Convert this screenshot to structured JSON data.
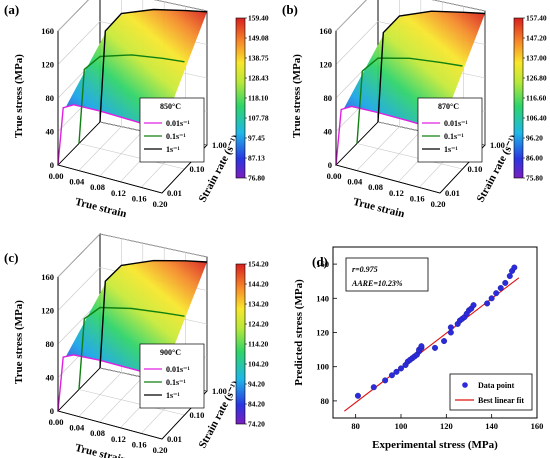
{
  "chart_data": [
    {
      "panel": "(a)",
      "type": "surface",
      "temperature": "850°C",
      "xlabel": "True strain",
      "ylabel": "True stress (MPa)",
      "zlabel": "Strain rate (s⁻¹)",
      "x_ticks": [
        "0.00",
        "0.04",
        "0.08",
        "0.12",
        "0.16",
        "0.20"
      ],
      "y_ticks": [
        "0",
        "40",
        "80",
        "120",
        "160"
      ],
      "z_ticks": [
        "0.01",
        "0.10",
        "1.00"
      ],
      "colorbar_ticks": [
        "159.40",
        "149.08",
        "138.75",
        "128.43",
        "118.10",
        "107.78",
        "97.45",
        "87.13",
        "76.80"
      ],
      "series": [
        {
          "name": "0.01s⁻¹",
          "color": "#e020e0",
          "values": [
            [
              0.0,
              0
            ],
            [
              0.01,
              70
            ],
            [
              0.03,
              77
            ],
            [
              0.08,
              78
            ],
            [
              0.14,
              77
            ],
            [
              0.2,
              76
            ]
          ]
        },
        {
          "name": "0.1s⁻¹",
          "color": "#108010",
          "values": [
            [
              0.0,
              0
            ],
            [
              0.01,
              90
            ],
            [
              0.04,
              110
            ],
            [
              0.1,
              121
            ],
            [
              0.16,
              126
            ],
            [
              0.2,
              128
            ]
          ]
        },
        {
          "name": "1s⁻¹",
          "color": "#000000",
          "values": [
            [
              0.0,
              0
            ],
            [
              0.01,
              110
            ],
            [
              0.04,
              135
            ],
            [
              0.1,
              148
            ],
            [
              0.16,
              155
            ],
            [
              0.2,
              159
            ]
          ]
        }
      ]
    },
    {
      "panel": "(b)",
      "type": "surface",
      "temperature": "870°C",
      "xlabel": "True strain",
      "ylabel": "True stress (MPa)",
      "zlabel": "Strain rate (s⁻¹)",
      "x_ticks": [
        "0.00",
        "0.04",
        "0.08",
        "0.12",
        "0.16",
        "0.20"
      ],
      "y_ticks": [
        "0",
        "40",
        "80",
        "120",
        "160"
      ],
      "z_ticks": [
        "0.01",
        "0.10",
        "1.00"
      ],
      "colorbar_ticks": [
        "157.40",
        "147.20",
        "137.00",
        "126.80",
        "116.60",
        "106.40",
        "96.20",
        "86.00",
        "75.80"
      ],
      "series": [
        {
          "name": "0.01s⁻¹",
          "color": "#e020e0",
          "values": [
            [
              0.0,
              0
            ],
            [
              0.01,
              68
            ],
            [
              0.03,
              75
            ],
            [
              0.08,
              76
            ],
            [
              0.14,
              76
            ],
            [
              0.2,
              75
            ]
          ]
        },
        {
          "name": "0.1s⁻¹",
          "color": "#108010",
          "values": [
            [
              0.0,
              0
            ],
            [
              0.01,
              88
            ],
            [
              0.04,
              108
            ],
            [
              0.1,
              117
            ],
            [
              0.16,
              121
            ],
            [
              0.2,
              123
            ]
          ]
        },
        {
          "name": "1s⁻¹",
          "color": "#000000",
          "values": [
            [
              0.0,
              0
            ],
            [
              0.01,
              108
            ],
            [
              0.04,
              132
            ],
            [
              0.1,
              146
            ],
            [
              0.16,
              153
            ],
            [
              0.2,
              157
            ]
          ]
        }
      ]
    },
    {
      "panel": "(c)",
      "type": "surface",
      "temperature": "900°C",
      "xlabel": "True strain",
      "ylabel": "True stress (MPa)",
      "zlabel": "Strain rate (s⁻¹)",
      "x_ticks": [
        "0.00",
        "0.04",
        "0.08",
        "0.12",
        "0.16",
        "0.20"
      ],
      "y_ticks": [
        "0",
        "40",
        "80",
        "120",
        "160"
      ],
      "z_ticks": [
        "0.01",
        "0.10",
        "1.00"
      ],
      "colorbar_ticks": [
        "154.20",
        "144.20",
        "134.20",
        "124.20",
        "114.20",
        "104.20",
        "94.20",
        "84.20",
        "74.20"
      ],
      "series": [
        {
          "name": "0.01s⁻¹",
          "color": "#e020e0",
          "values": [
            [
              0.0,
              0
            ],
            [
              0.01,
              66
            ],
            [
              0.03,
              72
            ],
            [
              0.08,
              74
            ],
            [
              0.14,
              74
            ],
            [
              0.2,
              74
            ]
          ]
        },
        {
          "name": "0.1s⁻¹",
          "color": "#108010",
          "values": [
            [
              0.0,
              0
            ],
            [
              0.01,
              86
            ],
            [
              0.04,
              104
            ],
            [
              0.1,
              112
            ],
            [
              0.16,
              116
            ],
            [
              0.2,
              118
            ]
          ]
        },
        {
          "name": "1s⁻¹",
          "color": "#000000",
          "values": [
            [
              0.0,
              0
            ],
            [
              0.01,
              105
            ],
            [
              0.04,
              128
            ],
            [
              0.1,
              142
            ],
            [
              0.16,
              150
            ],
            [
              0.2,
              154
            ]
          ]
        }
      ]
    },
    {
      "panel": "(d)",
      "type": "scatter",
      "xlabel": "Experimental stress (MPa)",
      "ylabel": "Predicted stress (MPa)",
      "xlim": [
        70,
        160
      ],
      "ylim": [
        70,
        170
      ],
      "x_ticks": [
        "80",
        "100",
        "120",
        "140",
        "160"
      ],
      "y_ticks": [
        "80",
        "100",
        "120",
        "140",
        "160"
      ],
      "annotation_r": "r=0.975",
      "annotation_aare": "AARE=10.23%",
      "legend": [
        "Data point",
        "Best linear fit"
      ],
      "fit_line": [
        [
          75,
          74
        ],
        [
          152,
          152
        ]
      ],
      "points": [
        [
          81,
          83
        ],
        [
          88,
          88
        ],
        [
          93,
          92
        ],
        [
          96,
          95
        ],
        [
          98,
          97
        ],
        [
          100,
          99
        ],
        [
          102,
          101
        ],
        [
          103,
          103
        ],
        [
          104,
          104
        ],
        [
          105,
          105
        ],
        [
          106,
          106
        ],
        [
          107,
          107
        ],
        [
          108,
          109
        ],
        [
          108,
          110
        ],
        [
          109,
          111
        ],
        [
          109,
          112
        ],
        [
          115,
          111
        ],
        [
          119,
          115
        ],
        [
          122,
          120
        ],
        [
          122,
          123
        ],
        [
          125,
          125
        ],
        [
          126,
          127
        ],
        [
          127,
          128
        ],
        [
          128,
          129
        ],
        [
          129,
          131
        ],
        [
          130,
          133
        ],
        [
          131,
          134
        ],
        [
          132,
          136
        ],
        [
          138,
          137
        ],
        [
          140,
          140
        ],
        [
          142,
          143
        ],
        [
          144,
          146
        ],
        [
          146,
          149
        ],
        [
          148,
          153
        ],
        [
          149,
          156
        ],
        [
          150,
          158
        ]
      ]
    }
  ]
}
